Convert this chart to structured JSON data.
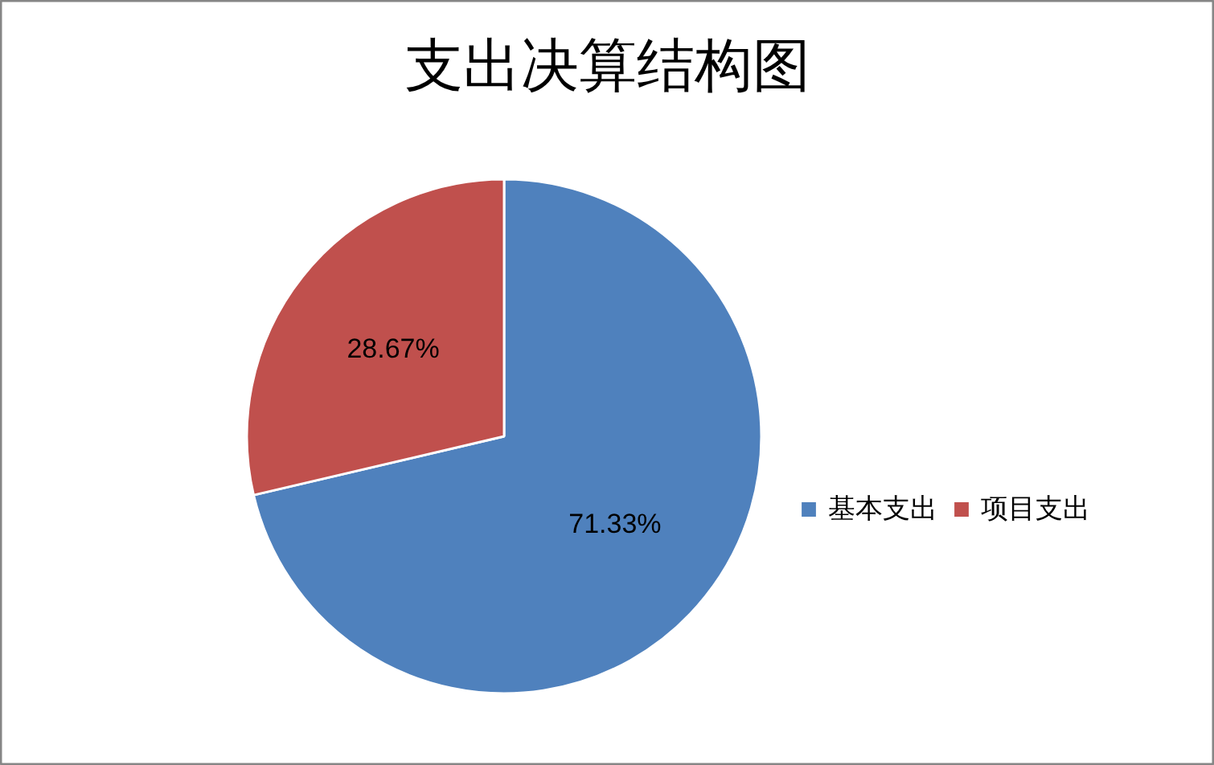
{
  "chart_data": {
    "type": "pie",
    "title": "支出决算结构图",
    "categories": [
      "基本支出",
      "项目支出"
    ],
    "values": [
      71.33,
      28.67
    ],
    "colors": [
      "#4f81bd",
      "#c0504d"
    ],
    "value_labels": [
      "71.33%",
      "28.67%"
    ],
    "legend": "right"
  }
}
